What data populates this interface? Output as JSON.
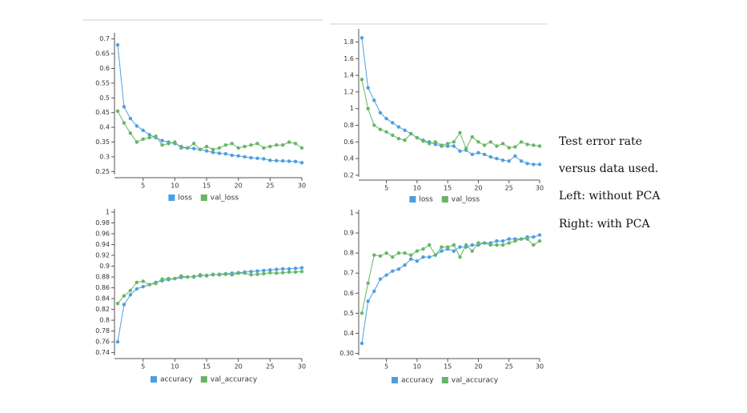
{
  "chart_data": [
    {
      "type": "line",
      "x": [
        1,
        2,
        3,
        4,
        5,
        6,
        7,
        8,
        9,
        10,
        11,
        12,
        13,
        14,
        15,
        16,
        17,
        18,
        19,
        20,
        21,
        22,
        23,
        24,
        25,
        26,
        27,
        28,
        29,
        30
      ],
      "xlim": [
        1,
        30
      ],
      "xticks": [
        5,
        10,
        15,
        20,
        25,
        30
      ],
      "ylim": [
        0.24,
        0.71
      ],
      "yticks": [
        0.25,
        0.3,
        0.35,
        0.4,
        0.45,
        0.5,
        0.55,
        0.6,
        0.65,
        0.7
      ],
      "series": [
        {
          "name": "loss",
          "color": "#4b9fe0",
          "values": [
            0.68,
            0.47,
            0.43,
            0.405,
            0.39,
            0.375,
            0.365,
            0.355,
            0.35,
            0.345,
            0.335,
            0.33,
            0.328,
            0.325,
            0.32,
            0.315,
            0.312,
            0.31,
            0.305,
            0.303,
            0.3,
            0.297,
            0.295,
            0.293,
            0.288,
            0.287,
            0.286,
            0.285,
            0.284,
            0.28
          ]
        },
        {
          "name": "val_loss",
          "color": "#66b666",
          "values": [
            0.455,
            0.415,
            0.38,
            0.35,
            0.36,
            0.365,
            0.37,
            0.34,
            0.345,
            0.35,
            0.33,
            0.33,
            0.345,
            0.325,
            0.335,
            0.325,
            0.33,
            0.34,
            0.345,
            0.33,
            0.335,
            0.34,
            0.345,
            0.33,
            0.335,
            0.34,
            0.34,
            0.35,
            0.345,
            0.33
          ]
        }
      ]
    },
    {
      "type": "line",
      "x": [
        1,
        2,
        3,
        4,
        5,
        6,
        7,
        8,
        9,
        10,
        11,
        12,
        13,
        14,
        15,
        16,
        17,
        18,
        19,
        20,
        21,
        22,
        23,
        24,
        25,
        26,
        27,
        28,
        29,
        30
      ],
      "xlim": [
        1,
        30
      ],
      "xticks": [
        5,
        10,
        15,
        20,
        25,
        30
      ],
      "ylim": [
        0.18,
        1.92
      ],
      "yticks": [
        0.2,
        0.4,
        0.6,
        0.8,
        1,
        1.2,
        1.4,
        1.6,
        1.8
      ],
      "series": [
        {
          "name": "loss",
          "color": "#4b9fe0",
          "values": [
            1.85,
            1.25,
            1.1,
            0.95,
            0.88,
            0.83,
            0.78,
            0.74,
            0.7,
            0.65,
            0.62,
            0.6,
            0.57,
            0.55,
            0.55,
            0.55,
            0.49,
            0.5,
            0.45,
            0.47,
            0.45,
            0.42,
            0.4,
            0.38,
            0.37,
            0.43,
            0.37,
            0.34,
            0.33,
            0.33
          ]
        },
        {
          "name": "val_loss",
          "color": "#66b666",
          "values": [
            1.35,
            1.0,
            0.8,
            0.75,
            0.72,
            0.68,
            0.64,
            0.62,
            0.7,
            0.65,
            0.61,
            0.58,
            0.6,
            0.56,
            0.58,
            0.6,
            0.71,
            0.52,
            0.66,
            0.6,
            0.56,
            0.6,
            0.55,
            0.58,
            0.53,
            0.54,
            0.6,
            0.57,
            0.56,
            0.55
          ]
        }
      ]
    },
    {
      "type": "line",
      "x": [
        1,
        2,
        3,
        4,
        5,
        6,
        7,
        8,
        9,
        10,
        11,
        12,
        13,
        14,
        15,
        16,
        17,
        18,
        19,
        20,
        21,
        22,
        23,
        24,
        25,
        26,
        27,
        28,
        29,
        30
      ],
      "xlim": [
        1,
        30
      ],
      "xticks": [
        5,
        10,
        15,
        20,
        25,
        30
      ],
      "ylim": [
        0.735,
        1.0
      ],
      "yticks": [
        0.74,
        0.76,
        0.78,
        0.8,
        0.82,
        0.84,
        0.86,
        0.88,
        0.9,
        0.92,
        0.94,
        0.96,
        0.98,
        1
      ],
      "series": [
        {
          "name": "accuracy",
          "color": "#4b9fe0",
          "values": [
            0.76,
            0.829,
            0.847,
            0.858,
            0.862,
            0.866,
            0.87,
            0.873,
            0.875,
            0.877,
            0.879,
            0.88,
            0.881,
            0.882,
            0.883,
            0.884,
            0.885,
            0.886,
            0.887,
            0.888,
            0.889,
            0.89,
            0.891,
            0.892,
            0.893,
            0.894,
            0.895,
            0.895,
            0.896,
            0.897
          ]
        },
        {
          "name": "val_accuracy",
          "color": "#66b666",
          "values": [
            0.831,
            0.845,
            0.855,
            0.87,
            0.872,
            0.866,
            0.868,
            0.876,
            0.877,
            0.877,
            0.882,
            0.88,
            0.88,
            0.884,
            0.882,
            0.885,
            0.884,
            0.885,
            0.884,
            0.887,
            0.887,
            0.884,
            0.885,
            0.886,
            0.888,
            0.887,
            0.888,
            0.889,
            0.889,
            0.89
          ]
        }
      ]
    },
    {
      "type": "line",
      "x": [
        1,
        2,
        3,
        4,
        5,
        6,
        7,
        8,
        9,
        10,
        11,
        12,
        13,
        14,
        15,
        16,
        17,
        18,
        19,
        20,
        21,
        22,
        23,
        24,
        25,
        26,
        27,
        28,
        29,
        30
      ],
      "xlim": [
        1,
        30
      ],
      "xticks": [
        5,
        10,
        15,
        20,
        25,
        30
      ],
      "ylim": [
        0.29,
        1.0
      ],
      "yticks": [
        {
          "value": 0.3,
          "label": "0.30"
        },
        0.4,
        0.5,
        0.6,
        0.7,
        0.8,
        0.9,
        1
      ],
      "series": [
        {
          "name": "accuracy",
          "color": "#4b9fe0",
          "values": [
            0.35,
            0.56,
            0.61,
            0.67,
            0.69,
            0.71,
            0.72,
            0.74,
            0.77,
            0.76,
            0.78,
            0.78,
            0.79,
            0.81,
            0.82,
            0.81,
            0.83,
            0.83,
            0.84,
            0.84,
            0.85,
            0.85,
            0.86,
            0.86,
            0.87,
            0.87,
            0.87,
            0.88,
            0.88,
            0.89
          ]
        },
        {
          "name": "val_accuracy",
          "color": "#66b666",
          "values": [
            0.5,
            0.65,
            0.79,
            0.785,
            0.8,
            0.78,
            0.8,
            0.8,
            0.79,
            0.81,
            0.82,
            0.84,
            0.79,
            0.83,
            0.83,
            0.84,
            0.78,
            0.84,
            0.81,
            0.85,
            0.85,
            0.84,
            0.84,
            0.84,
            0.85,
            0.86,
            0.87,
            0.87,
            0.84,
            0.86
          ]
        }
      ]
    }
  ],
  "caption": [
    "Test error rate",
    "versus data used.",
    "Left: without PCA",
    "Right: with PCA"
  ]
}
